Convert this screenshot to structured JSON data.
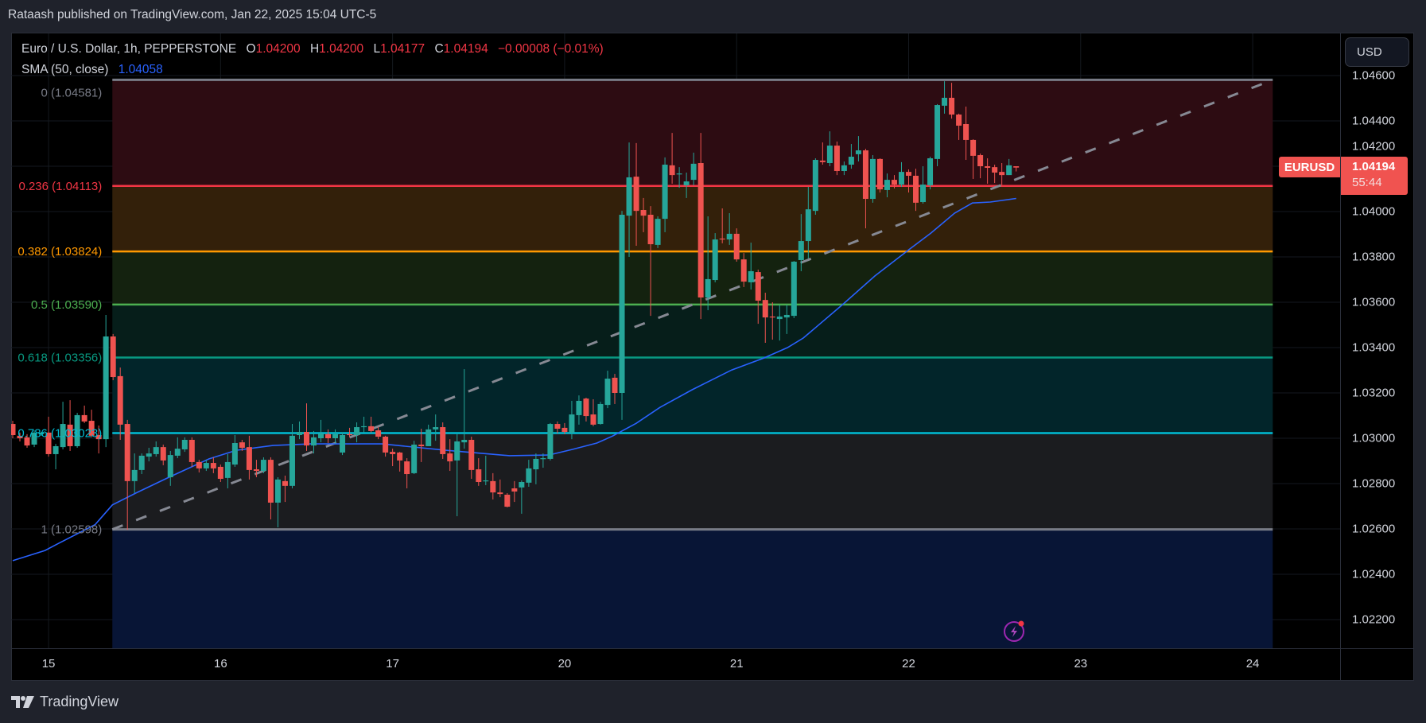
{
  "publish_line": "Rataash published on TradingView.com, Jan 22, 2025 15:04 UTC-5",
  "legend": {
    "symbol": "Euro / U.S. Dollar, 1h, PEPPERSTONE",
    "o_label": "O",
    "o": "1.04200",
    "h_label": "H",
    "h": "1.04200",
    "l_label": "L",
    "l": "1.04177",
    "c_label": "C",
    "c": "1.04194",
    "change": "−0.00008 (−0.01%)",
    "sma_label": "SMA (50, close)",
    "sma_value": "1.04058"
  },
  "currency_button": "USD",
  "last_price": {
    "symbol": "EURUSD",
    "price": "1.04194",
    "countdown": "55:44"
  },
  "price_axis": [
    "1.04600",
    "1.04400",
    "1.04200",
    "1.04000",
    "1.03800",
    "1.03600",
    "1.03400",
    "1.03200",
    "1.03000",
    "1.02800",
    "1.02600",
    "1.02400",
    "1.02200"
  ],
  "footer": {
    "brand": "TradingView"
  },
  "colors": {
    "up": "#26a69a",
    "down": "#ef5350",
    "sma": "#2962ff",
    "trend": "#868993"
  },
  "chart_data": {
    "type": "candlestick",
    "symbol": "EURUSD",
    "interval": "1h",
    "x_ticks": [
      {
        "label": "15",
        "bar": 5
      },
      {
        "label": "16",
        "bar": 29
      },
      {
        "label": "17",
        "bar": 53
      },
      {
        "label": "20",
        "bar": 77
      },
      {
        "label": "21",
        "bar": 101
      },
      {
        "label": "22",
        "bar": 125
      },
      {
        "label": "23",
        "bar": 149
      },
      {
        "label": "24",
        "bar": 173
      }
    ],
    "ylim": [
      1.02078,
      1.04732
    ],
    "candles_ohlc": [
      [
        1.03063,
        1.03077,
        1.03,
        1.03014
      ],
      [
        1.03011,
        1.03025,
        1.02986,
        1.03
      ],
      [
        1.03004,
        1.03018,
        1.02958,
        1.02968
      ],
      [
        1.02972,
        1.03035,
        1.02961,
        1.03025
      ],
      [
        1.03018,
        1.03028,
        1.03011,
        1.03025
      ],
      [
        1.03025,
        1.03095,
        1.02919,
        1.0293
      ],
      [
        1.0293,
        1.02975,
        1.02863,
        1.02965
      ],
      [
        1.02961,
        1.03161,
        1.02951,
        1.03063
      ],
      [
        1.0306,
        1.03168,
        1.02944,
        1.02965
      ],
      [
        1.02965,
        1.03112,
        1.02958,
        1.03102
      ],
      [
        1.03102,
        1.03144,
        1.03067,
        1.03074
      ],
      [
        1.03077,
        1.03126,
        1.03004,
        1.03011
      ],
      [
        1.03014,
        1.03056,
        1.02933,
        1.02996
      ],
      [
        1.02996,
        1.03544,
        1.02961,
        1.03449
      ],
      [
        1.03449,
        1.0346,
        1.03256,
        1.0327
      ],
      [
        1.03274,
        1.03312,
        1.02993,
        1.0306
      ],
      [
        1.03063,
        1.03081,
        1.02596,
        1.02811
      ],
      [
        1.02811,
        1.02933,
        1.02758,
        1.0286
      ],
      [
        1.0286,
        1.02933,
        1.02842,
        1.02923
      ],
      [
        1.02919,
        1.02958,
        1.02898,
        1.02933
      ],
      [
        1.0293,
        1.02986,
        1.02919,
        1.02961
      ],
      [
        1.02961,
        1.02972,
        1.02881,
        1.02902
      ],
      [
        1.02828,
        1.02944,
        1.0279,
        1.02926
      ],
      [
        1.02923,
        1.03004,
        1.02912,
        1.02954
      ],
      [
        1.02951,
        1.03004,
        1.0294,
        1.02993
      ],
      [
        1.02993,
        1.03004,
        1.02874,
        1.02895
      ],
      [
        1.02895,
        1.02905,
        1.02849,
        1.02867
      ],
      [
        1.02867,
        1.02905,
        1.02856,
        1.02891
      ],
      [
        1.02891,
        1.02916,
        1.02846,
        1.02867
      ],
      [
        1.02874,
        1.02884,
        1.02807,
        1.02821
      ],
      [
        1.02825,
        1.0293,
        1.02779,
        1.02895
      ],
      [
        1.02884,
        1.03014,
        1.02874,
        1.02979
      ],
      [
        1.02982,
        1.02993,
        1.02944,
        1.02958
      ],
      [
        1.02961,
        1.03011,
        1.02818,
        1.0286
      ],
      [
        1.02863,
        1.02905,
        1.02828,
        1.02856
      ],
      [
        1.02856,
        1.02916,
        1.02846,
        1.02905
      ],
      [
        1.02905,
        1.02916,
        1.02642,
        1.02716
      ],
      [
        1.02716,
        1.02828,
        1.02607,
        1.02818
      ],
      [
        1.02811,
        1.02835,
        1.02719,
        1.0279
      ],
      [
        1.0279,
        1.03063,
        1.02779,
        1.03011
      ],
      [
        1.03014,
        1.03074,
        1.02996,
        1.03028
      ],
      [
        1.03028,
        1.03154,
        1.02944,
        1.02968
      ],
      [
        1.02968,
        1.03032,
        1.02933,
        1.03004
      ],
      [
        1.03,
        1.03081,
        1.02982,
        1.03021
      ],
      [
        1.03018,
        1.03039,
        1.02979,
        1.03
      ],
      [
        1.03,
        1.03039,
        1.02975,
        1.03018
      ],
      [
        1.02937,
        1.03025,
        1.02926,
        1.03014
      ],
      [
        1.03018,
        1.03046,
        1.03004,
        1.03014
      ],
      [
        1.03014,
        1.0307,
        1.02982,
        1.03049
      ],
      [
        1.03049,
        1.03095,
        1.03025,
        1.03053
      ],
      [
        1.03053,
        1.03095,
        1.03025,
        1.03032
      ],
      [
        1.03035,
        1.03049,
        1.02996,
        1.03007
      ],
      [
        1.03007,
        1.03011,
        1.02919,
        1.02937
      ],
      [
        1.0294,
        1.02954,
        1.02877,
        1.0293
      ],
      [
        1.02937,
        1.0294,
        1.02853,
        1.02902
      ],
      [
        1.02898,
        1.02912,
        1.02779,
        1.02842
      ],
      [
        1.02846,
        1.02989,
        1.02842,
        1.02972
      ],
      [
        1.02972,
        1.03042,
        1.02895,
        1.02965
      ],
      [
        1.02965,
        1.0306,
        1.02972,
        1.03039
      ],
      [
        1.03039,
        1.03105,
        1.02989,
        1.03049
      ],
      [
        1.03049,
        1.0307,
        1.02909,
        1.0293
      ],
      [
        1.02933,
        1.02996,
        1.02856,
        1.02898
      ],
      [
        1.02902,
        1.03018,
        1.02656,
        1.02986
      ],
      [
        1.02982,
        1.03305,
        1.02954,
        1.02993
      ],
      [
        1.02993,
        1.03007,
        1.02821,
        1.0286
      ],
      [
        1.02863,
        1.02912,
        1.0279,
        1.02807
      ],
      [
        1.02811,
        1.02923,
        1.02793,
        1.02814
      ],
      [
        1.02811,
        1.02846,
        1.0273,
        1.02761
      ],
      [
        1.02761,
        1.02818,
        1.0274,
        1.02754
      ],
      [
        1.02751,
        1.02758,
        1.02695,
        1.02698
      ],
      [
        1.02779,
        1.02811,
        1.02719,
        1.02765
      ],
      [
        1.02783,
        1.02814,
        1.02667,
        1.02807
      ],
      [
        1.02804,
        1.02905,
        1.02786,
        1.02867
      ],
      [
        1.02863,
        1.02933,
        1.02797,
        1.02909
      ],
      [
        1.02909,
        1.02933,
        1.0287,
        1.02912
      ],
      [
        1.02909,
        1.03067,
        1.02902,
        1.03063
      ],
      [
        1.03063,
        1.03074,
        1.03021,
        1.03042
      ],
      [
        1.03046,
        1.03067,
        1.03018,
        1.03028
      ],
      [
        1.03025,
        1.03165,
        1.02996,
        1.03105
      ],
      [
        1.03102,
        1.03189,
        1.0306,
        1.03165
      ],
      [
        1.03175,
        1.03179,
        1.03074,
        1.03098
      ],
      [
        1.03105,
        1.03172,
        1.03053,
        1.0306
      ],
      [
        1.03063,
        1.03161,
        1.0306,
        1.03151
      ],
      [
        1.03147,
        1.03298,
        1.03133,
        1.03263
      ],
      [
        1.03267,
        1.03284,
        1.03151,
        1.032
      ],
      [
        1.032,
        1.04003,
        1.03081,
        1.03986
      ],
      [
        1.03982,
        1.04305,
        1.038,
        1.04151
      ],
      [
        1.04154,
        1.04302,
        1.03849,
        1.04003
      ],
      [
        1.04007,
        1.0406,
        1.03909,
        1.03982
      ],
      [
        1.03986,
        1.04024,
        1.0354,
        1.03856
      ],
      [
        1.03853,
        1.03979,
        1.03839,
        1.03968
      ],
      [
        1.03968,
        1.04239,
        1.03909,
        1.04207
      ],
      [
        1.04204,
        1.04347,
        1.04123,
        1.04161
      ],
      [
        1.04165,
        1.04196,
        1.04105,
        1.04168
      ],
      [
        1.04116,
        1.04172,
        1.0406,
        1.04133
      ],
      [
        1.0414,
        1.0426,
        1.04116,
        1.04211
      ],
      [
        1.04214,
        1.04347,
        1.03526,
        1.03621
      ],
      [
        1.03621,
        1.03979,
        1.03565,
        1.03702
      ],
      [
        1.03698,
        1.03905,
        1.03688,
        1.03877
      ],
      [
        1.03881,
        1.04014,
        1.0386,
        1.03877
      ],
      [
        1.03877,
        1.03993,
        1.03853,
        1.03902
      ],
      [
        1.03902,
        1.03926,
        1.03779,
        1.03789
      ],
      [
        1.03789,
        1.03817,
        1.03667,
        1.03691
      ],
      [
        1.03688,
        1.03863,
        1.03656,
        1.03737
      ],
      [
        1.03733,
        1.03744,
        1.03505,
        1.03607
      ],
      [
        1.0361,
        1.03642,
        1.03421,
        1.03533
      ],
      [
        1.03537,
        1.036,
        1.03435,
        1.03533
      ],
      [
        1.03526,
        1.03589,
        1.03431,
        1.03537
      ],
      [
        1.03533,
        1.03589,
        1.0346,
        1.03544
      ],
      [
        1.0354,
        1.03782,
        1.0353,
        1.03779
      ],
      [
        1.03786,
        1.03989,
        1.03737,
        1.0387
      ],
      [
        1.0387,
        1.04109,
        1.03793,
        1.0401
      ],
      [
        1.04003,
        1.04235,
        1.03986,
        1.04228
      ],
      [
        1.04225,
        1.04305,
        1.04207,
        1.04218
      ],
      [
        1.04214,
        1.04354,
        1.042,
        1.04291
      ],
      [
        1.04291,
        1.04309,
        1.04161,
        1.04179
      ],
      [
        1.04179,
        1.04221,
        1.04161,
        1.04204
      ],
      [
        1.04207,
        1.04298,
        1.04189,
        1.04242
      ],
      [
        1.04253,
        1.04333,
        1.04221,
        1.0427
      ],
      [
        1.0427,
        1.04277,
        1.03926,
        1.04056
      ],
      [
        1.04056,
        1.04249,
        1.04039,
        1.04232
      ],
      [
        1.04232,
        1.04235,
        1.04084,
        1.04098
      ],
      [
        1.04095,
        1.04168,
        1.04063,
        1.0414
      ],
      [
        1.0414,
        1.04161,
        1.04102,
        1.04119
      ],
      [
        1.04119,
        1.04218,
        1.04109,
        1.04175
      ],
      [
        1.04175,
        1.04186,
        1.04084,
        1.04158
      ],
      [
        1.04158,
        1.04189,
        1.04003,
        1.04039
      ],
      [
        1.04042,
        1.042,
        1.04035,
        1.04119
      ],
      [
        1.04116,
        1.04242,
        1.04098,
        1.04235
      ],
      [
        1.04232,
        1.04474,
        1.042,
        1.0447
      ],
      [
        1.04467,
        1.04575,
        1.04432,
        1.04502
      ],
      [
        1.04502,
        1.04568,
        1.0441,
        1.04428
      ],
      [
        1.04428,
        1.04432,
        1.04316,
        1.04379
      ],
      [
        1.04386,
        1.04463,
        1.04228,
        1.04316
      ],
      [
        1.04316,
        1.04319,
        1.04144,
        1.04246
      ],
      [
        1.04249,
        1.04256,
        1.04147,
        1.042
      ],
      [
        1.042,
        1.04235,
        1.04123,
        1.04193
      ],
      [
        1.04196,
        1.04207,
        1.04126,
        1.04172
      ],
      [
        1.04175,
        1.04214,
        1.04116,
        1.04161
      ],
      [
        1.04161,
        1.04232,
        1.04161,
        1.04204
      ],
      [
        1.042,
        1.042,
        1.04177,
        1.04194
      ]
    ],
    "sma50": [
      [
        0,
        1.0246
      ],
      [
        4.5,
        1.02505
      ],
      [
        6.2,
        1.02533
      ],
      [
        11.5,
        1.02619
      ],
      [
        13.9,
        1.02706
      ],
      [
        17.3,
        1.0276
      ],
      [
        21.8,
        1.02828
      ],
      [
        27.4,
        1.02909
      ],
      [
        31.2,
        1.02947
      ],
      [
        36.3,
        1.02968
      ],
      [
        41.4,
        1.02975
      ],
      [
        51.5,
        1.02975
      ],
      [
        60.4,
        1.02947
      ],
      [
        69.3,
        1.02923
      ],
      [
        74.8,
        1.02926
      ],
      [
        78.1,
        1.02951
      ],
      [
        81.5,
        1.02979
      ],
      [
        83.7,
        1.0301
      ],
      [
        87,
        1.03066
      ],
      [
        90.3,
        1.03136
      ],
      [
        94.8,
        1.03214
      ],
      [
        100.3,
        1.03301
      ],
      [
        104.8,
        1.03354
      ],
      [
        108.1,
        1.034
      ],
      [
        110.3,
        1.03442
      ],
      [
        112.5,
        1.03501
      ],
      [
        115.9,
        1.03593
      ],
      [
        120.3,
        1.03716
      ],
      [
        124.7,
        1.03824
      ],
      [
        128.1,
        1.03905
      ],
      [
        131.4,
        1.03993
      ],
      [
        133.9,
        1.04038
      ],
      [
        136.4,
        1.04042
      ],
      [
        140,
        1.04058
      ]
    ],
    "fib_retracement": {
      "start_bar": 13.9,
      "end_bar": 175.8,
      "levels": [
        {
          "ratio": "0",
          "price": "1.04581",
          "label": "0 (1.04581)",
          "color": "#787b86",
          "fill": "#2d0c12"
        },
        {
          "ratio": "0.236",
          "price": "1.04113",
          "label": "0.236 (1.04113)",
          "color": "#f23645",
          "fill": "#33200a"
        },
        {
          "ratio": "0.382",
          "price": "1.03824",
          "label": "0.382 (1.03824)",
          "color": "#ff9800",
          "fill": "#14220f"
        },
        {
          "ratio": "0.5",
          "price": "1.03590",
          "label": "0.5 (1.03590)",
          "color": "#4caf50",
          "fill": "#061e1a"
        },
        {
          "ratio": "0.618",
          "price": "1.03356",
          "label": "0.618 (1.03356)",
          "color": "#089981",
          "fill": "#02252a"
        },
        {
          "ratio": "0.786",
          "price": "1.03023",
          "label": "0.786 (1.03023)",
          "color": "#00bcd4",
          "fill": "#1b1c1f"
        },
        {
          "ratio": "1",
          "price": "1.02598",
          "label": "1 (1.02598)",
          "color": "#787b86",
          "fill": "#081536"
        }
      ]
    },
    "trend_line": {
      "start": [
        13.9,
        1.02598
      ],
      "end": [
        175.8,
        1.04581
      ],
      "style": "dashed"
    }
  }
}
